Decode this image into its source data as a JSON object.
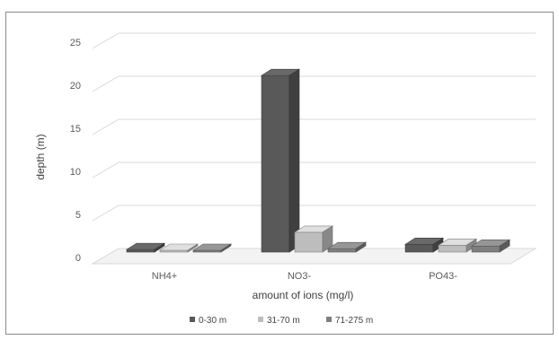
{
  "chart_data": {
    "type": "bar",
    "style": "3d-clustered-column",
    "categories": [
      "NH4+",
      "NO3-",
      "PO43-"
    ],
    "series": [
      {
        "name": "0-30 m",
        "values": [
          0.3,
          20.5,
          0.9
        ],
        "color": "#595959"
      },
      {
        "name": "31-70 m",
        "values": [
          0.2,
          2.3,
          0.8
        ],
        "color": "#bdbdbd"
      },
      {
        "name": "71-275 m",
        "values": [
          0.1,
          0.4,
          0.7
        ],
        "color": "#7f7f7f"
      }
    ],
    "yticks": [
      0,
      5,
      10,
      15,
      20,
      25
    ],
    "ylim": [
      0,
      25
    ],
    "xlabel": "amount of ions (mg/l)",
    "ylabel": "depth (m)",
    "grid": true,
    "legend_position": "bottom"
  }
}
